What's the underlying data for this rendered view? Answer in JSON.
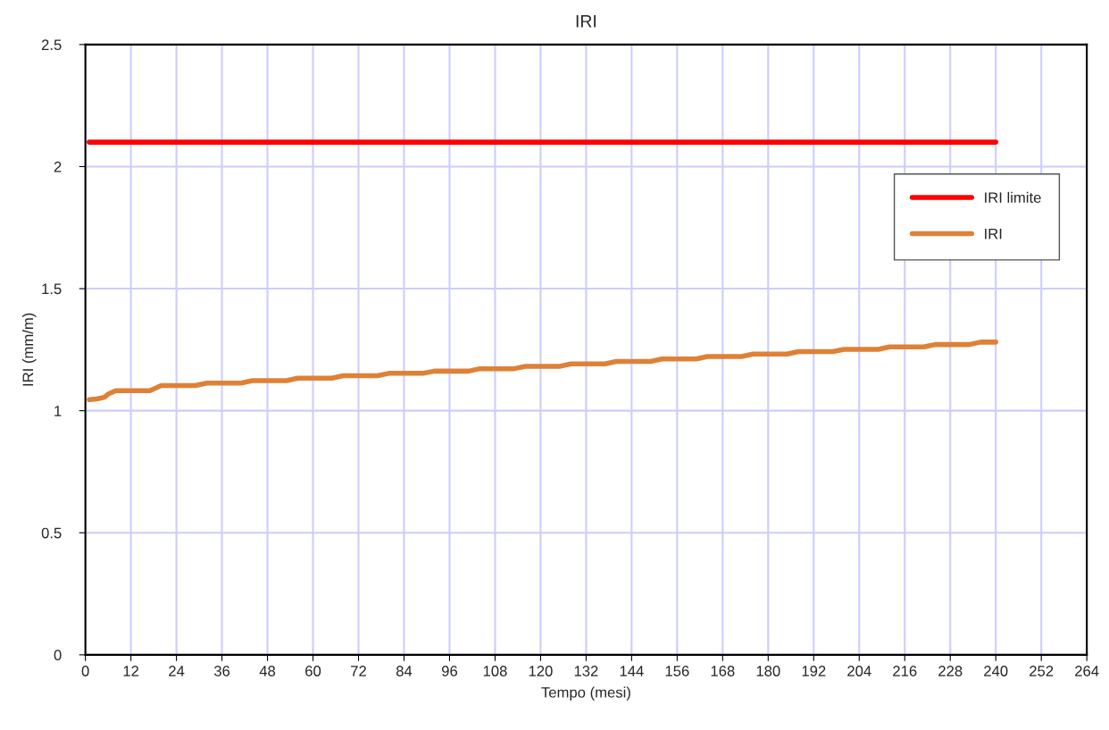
{
  "chart_data": {
    "type": "line",
    "title": "IRI",
    "xlabel": "Tempo (mesi)",
    "ylabel": "IRI (mm/m)",
    "xlim": [
      0,
      264
    ],
    "xticks": [
      0,
      12,
      24,
      36,
      48,
      60,
      72,
      84,
      96,
      108,
      120,
      132,
      144,
      156,
      168,
      180,
      192,
      204,
      216,
      228,
      240,
      252,
      264
    ],
    "ylim": [
      0,
      2.5
    ],
    "yticks": [
      0,
      0.5,
      1,
      1.5,
      2,
      2.5
    ],
    "grid": true,
    "legend": "top right",
    "line_style": "solid",
    "marker": "none",
    "series": [
      {
        "name": "IRI limite",
        "color": "#ff0000",
        "x": [
          1,
          240
        ],
        "values": [
          2.1,
          2.1
        ]
      },
      {
        "name": "IRI",
        "color": "#de8137",
        "x": [
          1,
          3,
          5,
          6,
          8,
          17,
          20,
          29,
          32,
          41,
          44,
          53,
          56,
          65,
          68,
          77,
          80,
          89,
          92,
          101,
          104,
          113,
          116,
          125,
          128,
          137,
          140,
          149,
          152,
          161,
          164,
          173,
          176,
          185,
          188,
          197,
          200,
          209,
          212,
          221,
          224,
          233,
          236,
          240
        ],
        "values": [
          1.045,
          1.048,
          1.055,
          1.068,
          1.082,
          1.082,
          1.103,
          1.103,
          1.113,
          1.113,
          1.123,
          1.123,
          1.133,
          1.133,
          1.143,
          1.143,
          1.153,
          1.153,
          1.162,
          1.162,
          1.172,
          1.172,
          1.182,
          1.182,
          1.192,
          1.192,
          1.202,
          1.202,
          1.212,
          1.212,
          1.222,
          1.222,
          1.232,
          1.232,
          1.242,
          1.242,
          1.251,
          1.251,
          1.261,
          1.261,
          1.271,
          1.271,
          1.281,
          1.281
        ]
      }
    ]
  }
}
